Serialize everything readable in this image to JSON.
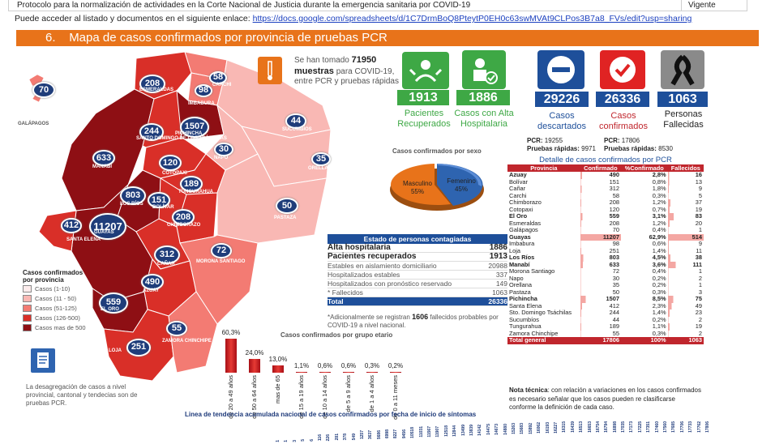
{
  "header": {
    "protocol_text": "Protocolo para la normalización de actividades en la Corte Nacional de Justicia durante la emergencia sanitaria por COVID-19",
    "status": "Vigente",
    "link_prefix": "Puede acceder al listado y documentos en el siguiente enlace:",
    "link_url": "https://docs.google.com/spreadsheets/d/1C7DrmBoQ8PteytP0EH0c63swMVAt9CLPos3B7a8_FVs/edit?usp=sharing"
  },
  "banner": {
    "number": "6.",
    "title": "Mapa de casos confirmados por provincia  de pruebas PCR"
  },
  "map": {
    "bubbles": [
      "70",
      "208",
      "58",
      "98",
      "1507",
      "244",
      "633",
      "44",
      "30",
      "120",
      "35",
      "189",
      "803",
      "151",
      "208",
      "11207",
      "412",
      "50",
      "312",
      "72",
      "490",
      "559",
      "55",
      "251"
    ],
    "labels": [
      "GALÁPAGOS",
      "ESMERALDAS",
      "CARCHI",
      "IMBABURA",
      "PICHINCHA",
      "SANTO DOMINGO DE LOS TSÁCHILAS",
      "MANABÍ",
      "SUCUMBÍOS",
      "NAPO",
      "COTOPAXI",
      "ORELLANA",
      "TUNGURAHUA",
      "LOS RÍOS",
      "BOLÍVAR",
      "CHIMBORAZO",
      "GUAYAS",
      "SANTA ELENA",
      "PASTAZA",
      "CAÑAR",
      "MORONA SANTIAGO",
      "AZUAY",
      "EL ORO",
      "ZAMORA CHINCHIPE",
      "LOJA"
    ]
  },
  "tests": {
    "prefix": "Se han tomado",
    "number": "71950",
    "bold": "muestras",
    "rest": "para COVID-19, entre PCR y pruebas rápidas"
  },
  "kpis": {
    "recuperados": {
      "value": "1913",
      "label": "Pacientes Recuperados"
    },
    "alta": {
      "value": "1886",
      "label": "Casos con Alta Hospitalaria"
    },
    "descartados": {
      "value": "29226",
      "label": "Casos descartados",
      "pcr_label": "PCR:",
      "pcr": "19255",
      "rapid_label": "Pruebas rápidas:",
      "rapid": "9971"
    },
    "confirmados": {
      "value": "26336",
      "label": "Casos confirmados",
      "pcr_label": "PCR:",
      "pcr": "17806",
      "rapid_label": "Pruebas rápidas:",
      "rapid": "8530"
    },
    "fallecidas": {
      "value": "1063",
      "label": "Personas Fallecidas"
    }
  },
  "sex_chart": {
    "title": "Casos confirmados por sexo",
    "masculino": {
      "label": "Masculino",
      "pct": "55%"
    },
    "femenino": {
      "label": "Femenino",
      "pct": "45%"
    }
  },
  "detail": {
    "title": "Detalle de casos confirmados por PCR",
    "headers": [
      "Provincia",
      "Confirmado",
      "%Confirmado",
      "Fallecidos"
    ],
    "rows": [
      [
        "Azuay",
        "490",
        "2,8%",
        "16"
      ],
      [
        "Bolívar",
        "151",
        "0,8%",
        "13"
      ],
      [
        "Cañar",
        "312",
        "1,8%",
        "9"
      ],
      [
        "Carchi",
        "58",
        "0,3%",
        "5"
      ],
      [
        "Chimborazo",
        "208",
        "1,2%",
        "37"
      ],
      [
        "Cotopaxi",
        "120",
        "0,7%",
        "19"
      ],
      [
        "El Oro",
        "559",
        "3,1%",
        "83"
      ],
      [
        "Esmeraldas",
        "208",
        "1,2%",
        "20"
      ],
      [
        "Galápagos",
        "70",
        "0,4%",
        "1"
      ],
      [
        "Guayas",
        "11207",
        "62,9%",
        "514"
      ],
      [
        "Imbabura",
        "98",
        "0,6%",
        "9"
      ],
      [
        "Loja",
        "251",
        "1,4%",
        "11"
      ],
      [
        "Los Ríos",
        "803",
        "4,5%",
        "38"
      ],
      [
        "Manabí",
        "633",
        "3,6%",
        "111"
      ],
      [
        "Morona Santiago",
        "72",
        "0,4%",
        "1"
      ],
      [
        "Napo",
        "30",
        "0,2%",
        "2"
      ],
      [
        "Orellana",
        "35",
        "0,2%",
        "1"
      ],
      [
        "Pastaza",
        "50",
        "0,3%",
        "3"
      ],
      [
        "Pichincha",
        "1507",
        "8,5%",
        "75"
      ],
      [
        "Santa Elena",
        "412",
        "2,3%",
        "49"
      ],
      [
        "Sto. Domingo Tsáchilas",
        "244",
        "1,4%",
        "23"
      ],
      [
        "Sucumbíos",
        "44",
        "0,2%",
        "2"
      ],
      [
        "Tungurahua",
        "189",
        "1,1%",
        "19"
      ],
      [
        "Zamora Chinchipe",
        "55",
        "0,3%",
        "2"
      ]
    ],
    "bold_rows": [
      0,
      6,
      9,
      12,
      13,
      18
    ],
    "total": [
      "Total general",
      "17806",
      "100%",
      "1063"
    ]
  },
  "estado": {
    "title": "Estado de personas contagiadas",
    "rows": [
      [
        "Alta hospitalaria",
        "1886"
      ],
      [
        "Pacientes recuperados",
        "1913"
      ],
      [
        "Estables en aislamiento domiciliario",
        "20988"
      ],
      [
        "Hospitalizados estables",
        "337"
      ],
      [
        "Hospitalizados con pronóstico reservado",
        "149"
      ],
      [
        "* Fallecidos",
        "1063"
      ]
    ],
    "total": [
      "Total",
      "26336"
    ],
    "note_a": "*Adicionalmente se registran",
    "note_num": "1606",
    "note_b": "fallecidos probables por COVID-19 a nivel nacional."
  },
  "legend": {
    "title": "Casos confirmados por provincia",
    "items": [
      {
        "label": "Casos (1-10)",
        "color": "#fdecec"
      },
      {
        "label": "Casos (11 - 50)",
        "color": "#f9b8b4"
      },
      {
        "label": "Casos (51-125)",
        "color": "#f37b73"
      },
      {
        "label": "Casos (126-500)",
        "color": "#d92f28"
      },
      {
        "label": "Casos mas de 500",
        "color": "#8e0f14"
      }
    ],
    "note": "La desagregación de casos a nivel provincial, cantonal y tendecias son de pruebas PCR."
  },
  "chart_data": {
    "type": "bar",
    "title": "Casos confirmados por grupo etario",
    "categories": [
      "de 20 a 49 años",
      "de 50 a 64 años",
      "mas de 65",
      "de 15 a 19 años",
      "de 10 a 14 años",
      "de 5 a 9 años",
      "de 1 a 4 años",
      "de 0 a 11 meses"
    ],
    "values": [
      60.3,
      24.0,
      13.0,
      1.1,
      0.6,
      0.6,
      0.3,
      0.2
    ],
    "labels": [
      "60,3%",
      "24,0%",
      "13,0%",
      "1,1%",
      "0,6%",
      "0,6%",
      "0,3%",
      "0,2%"
    ],
    "ylim": [
      0,
      60.3
    ]
  },
  "trend": {
    "title": "Linea de tendencia acumulada nacional de casos confirmados por fecha de inicio de síntomas",
    "values": [
      "1",
      "1",
      "3",
      "5",
      "6",
      "116",
      "226",
      "281",
      "378",
      "549",
      "1257",
      "3637",
      "5686",
      "6998",
      "8227",
      "9456",
      "10518",
      "11031",
      "11567",
      "11907",
      "12518",
      "12844",
      "13499",
      "13839",
      "14142",
      "14475",
      "14673",
      "14880",
      "15263",
      "15683",
      "15892",
      "16062",
      "16193",
      "16227",
      "16315",
      "16439",
      "16513",
      "16653",
      "16754",
      "16794",
      "16898",
      "17035",
      "17173",
      "17225",
      "17351",
      "17460",
      "17560",
      "17685",
      "17706",
      "17733",
      "17762",
      "17806"
    ]
  }
}
